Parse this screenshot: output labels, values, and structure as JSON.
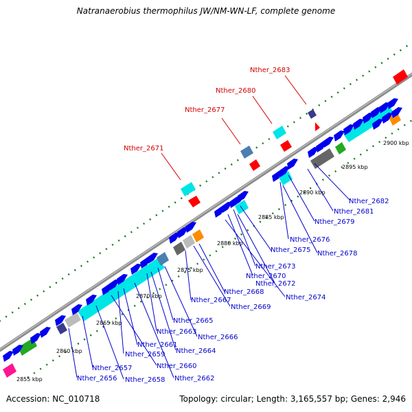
{
  "title": "Natranaerobius thermophilus JW/NM-WN-LF, complete genome",
  "footer": {
    "accession": "Accession: NC_010718",
    "summary": "Topology: circular; Length: 3,165,557 bp; Genes: 2,946"
  },
  "colors": {
    "backbone": "#8c8c8c",
    "dots": "#1a7a1a",
    "forward_label": "#d40000",
    "reverse_label": "#0000cc",
    "cds_blue": "#0000ee",
    "cds_cyan": "#00e5e5",
    "cds_red": "#ff0000",
    "cds_steel": "#4a7fb0",
    "cds_purple": "#3a3a8a",
    "cds_green": "#22aa22",
    "cds_orange": "#ff8c00",
    "cds_gray": "#666666",
    "cds_lightgray": "#bbbbbb",
    "cds_magenta": "#ff1493"
  },
  "ticks": [
    "2855 kbp",
    "2860 kbp",
    "2865 kbp",
    "2870 kbp",
    "2875 kbp",
    "2880 kbp",
    "2885 kbp",
    "2890 kbp",
    "2895 kbp",
    "2900 kbp"
  ],
  "forward_labels": [
    "Nther_2671",
    "Nther_2677",
    "Nther_2680",
    "Nther_2683"
  ],
  "reverse_labels": [
    "Nther_2682",
    "Nther_2681",
    "Nther_2679",
    "Nther_2676",
    "Nther_2678",
    "Nther_2675",
    "Nther_2673",
    "Nther_2670",
    "Nther_2672",
    "Nther_2674",
    "Nther_2668",
    "Nther_2669",
    "Nther_2667",
    "Nther_2665",
    "Nther_2666",
    "Nther_2663",
    "Nther_2664",
    "Nther_2661",
    "Nther_2659",
    "Nther_2660",
    "Nther_2657",
    "Nther_2662",
    "Nther_2656",
    "Nther_2658"
  ]
}
